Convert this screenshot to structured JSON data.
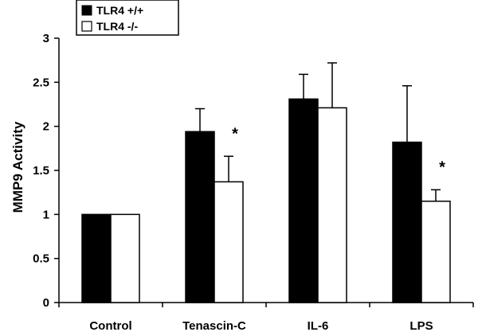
{
  "chart_data": {
    "type": "bar",
    "title": "",
    "xlabel": "",
    "ylabel": "MMP9 Activity",
    "ylim": [
      0,
      3
    ],
    "yticks": [
      "0",
      "0.5",
      "1",
      "1.5",
      "2",
      "2.5",
      "3"
    ],
    "categories": [
      "Control",
      "Tenascin-C",
      "IL-6",
      "LPS"
    ],
    "legend_position": "top-left",
    "grid": false,
    "series": [
      {
        "name": "TLR4 +/+",
        "color": "#000000",
        "values": [
          1.0,
          1.94,
          2.31,
          1.82
        ],
        "errors": [
          0.0,
          0.26,
          0.28,
          0.64
        ]
      },
      {
        "name": "TLR4 -/-",
        "color": "#ffffff",
        "values": [
          1.0,
          1.37,
          2.21,
          1.15
        ],
        "errors": [
          0.0,
          0.29,
          0.51,
          0.13
        ]
      }
    ],
    "annotations": [
      {
        "text": "*",
        "category": "Tenascin-C"
      },
      {
        "text": "*",
        "category": "LPS"
      }
    ]
  }
}
